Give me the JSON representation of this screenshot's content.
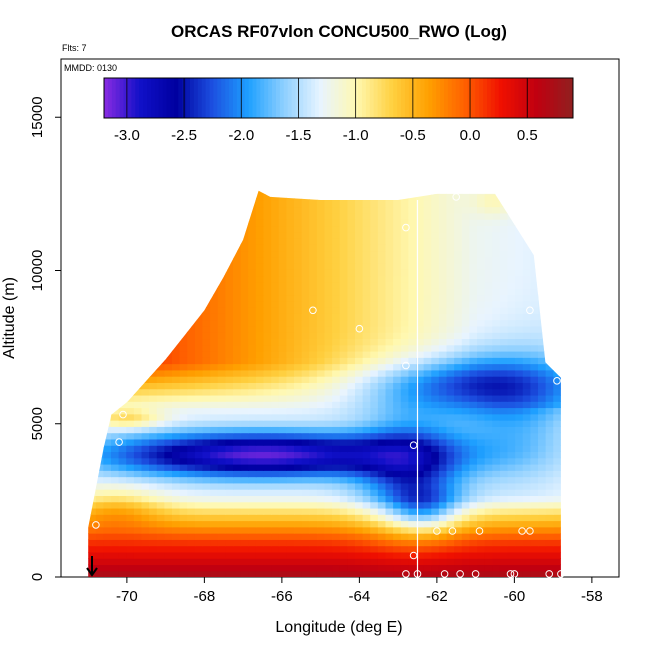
{
  "chart_data": {
    "type": "heatmap",
    "title": "ORCAS RF07vlon CONCU500_RWO (Log)",
    "annotations": {
      "flights": "Flts: 7",
      "date": "MMDD: 0130"
    },
    "xlabel": "Longitude (deg E)",
    "ylabel": "Altitude (m)",
    "xlim": [
      -71.7,
      -57.3
    ],
    "ylim": [
      0,
      16900
    ],
    "x_ticks": [
      -70,
      -68,
      -66,
      -64,
      -62,
      -60,
      -58
    ],
    "y_ticks": [
      0,
      5000,
      10000,
      15000
    ],
    "colorbar": {
      "range": [
        -3.2,
        0.9
      ],
      "ticks": [
        -3.0,
        -2.5,
        -2.0,
        -1.5,
        -1.0,
        -0.5,
        0.0,
        0.5
      ],
      "tick_labels": [
        "-3.0",
        "-2.5",
        "-2.0",
        "-1.5",
        "-1.0",
        "-0.5",
        "0.0",
        "0.5"
      ],
      "colors": [
        "#8a2be2",
        "#1010c8",
        "#0000a0",
        "#1c4fe0",
        "#1ea0ff",
        "#8fd0ff",
        "#e8f4ff",
        "#fff8b0",
        "#ffd040",
        "#ffa000",
        "#ff6000",
        "#f01000",
        "#c00010",
        "#902020"
      ]
    },
    "field": {
      "lon_range": [
        -71.0,
        -58.8
      ],
      "alt_range": [
        0,
        12700
      ],
      "top_boundary": [
        [
          -71.0,
          1600
        ],
        [
          -70.8,
          2900
        ],
        [
          -70.6,
          4200
        ],
        [
          -70.4,
          5300
        ],
        [
          -70.0,
          5700
        ],
        [
          -69.5,
          6400
        ],
        [
          -69.0,
          7100
        ],
        [
          -68.5,
          7900
        ],
        [
          -68.0,
          8700
        ],
        [
          -67.5,
          9800
        ],
        [
          -67.0,
          11000
        ],
        [
          -66.6,
          12600
        ],
        [
          -66.3,
          12400
        ],
        [
          -65.0,
          12300
        ],
        [
          -63.0,
          12300
        ],
        [
          -62.0,
          12500
        ],
        [
          -60.5,
          12500
        ],
        [
          -60.3,
          12100
        ],
        [
          -59.5,
          10500
        ],
        [
          -59.2,
          7000
        ],
        [
          -58.8,
          6500
        ]
      ],
      "vertical_line_lon": -62.5,
      "features": [
        {
          "name": "cold_core",
          "lon": -62.8,
          "alt": 4000,
          "value": -3.1
        },
        {
          "name": "lower_tongue",
          "lon": -70.5,
          "alt": 3600,
          "value": -2.6
        },
        {
          "name": "upper_band",
          "lon": -61.5,
          "alt": 6400,
          "value": -1.8
        },
        {
          "name": "surface",
          "lon": -60.5,
          "alt": 200,
          "value": 0.6
        }
      ]
    },
    "observations": [
      [
        -70.1,
        5300
      ],
      [
        -70.2,
        4400
      ],
      [
        -70.8,
        1700
      ],
      [
        -65.2,
        8700
      ],
      [
        -64.0,
        8100
      ],
      [
        -62.8,
        11400
      ],
      [
        -62.8,
        6900
      ],
      [
        -62.6,
        4300
      ],
      [
        -62.6,
        700
      ],
      [
        -62.0,
        1500
      ],
      [
        -61.6,
        1500
      ],
      [
        -60.9,
        1500
      ],
      [
        -59.8,
        1500
      ],
      [
        -59.6,
        1500
      ],
      [
        -61.5,
        12400
      ],
      [
        -59.6,
        8700
      ],
      [
        -58.9,
        6400
      ],
      [
        -62.8,
        100
      ],
      [
        -62.5,
        100
      ],
      [
        -61.8,
        100
      ],
      [
        -61.4,
        100
      ],
      [
        -61.0,
        100
      ],
      [
        -60.1,
        100
      ],
      [
        -60.0,
        100
      ],
      [
        -59.1,
        100
      ],
      [
        -58.8,
        100
      ]
    ],
    "arrow_marker": {
      "lon": -70.9
    }
  }
}
